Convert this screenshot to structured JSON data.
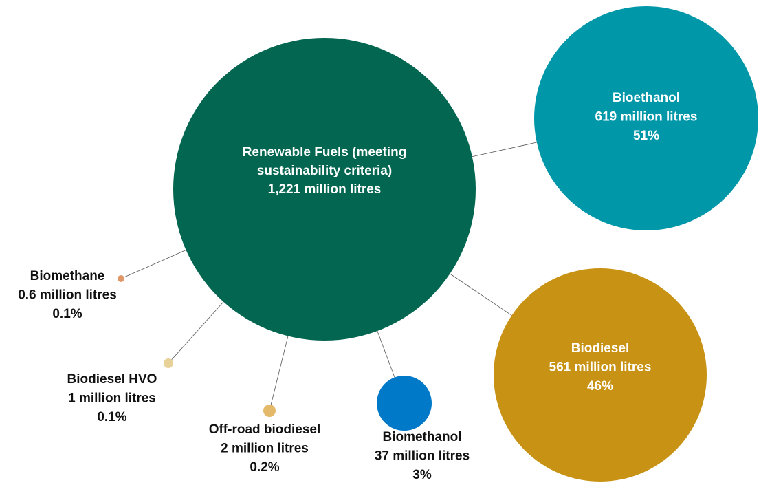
{
  "center": {
    "label_lines": [
      "Renewable Fuels (meeting",
      "sustainability criteria)"
    ],
    "amount": "1,221 million litres"
  },
  "nodes": [
    {
      "label": "Bioethanol",
      "amount": "619 million litres",
      "share": "51%"
    },
    {
      "label": "Biodiesel",
      "amount": "561 million litres",
      "share": "46%"
    },
    {
      "label": "Biomethanol",
      "amount": "37 million litres",
      "share": "3%"
    },
    {
      "label": "Off-road biodiesel",
      "amount": "2 million litres",
      "share": "0.2%"
    },
    {
      "label": "Biodiesel HVO",
      "amount": "1 million litres",
      "share": "0.1%"
    },
    {
      "label": "Biomethane",
      "amount": "0.6 million litres",
      "share": "0.1%"
    }
  ]
}
